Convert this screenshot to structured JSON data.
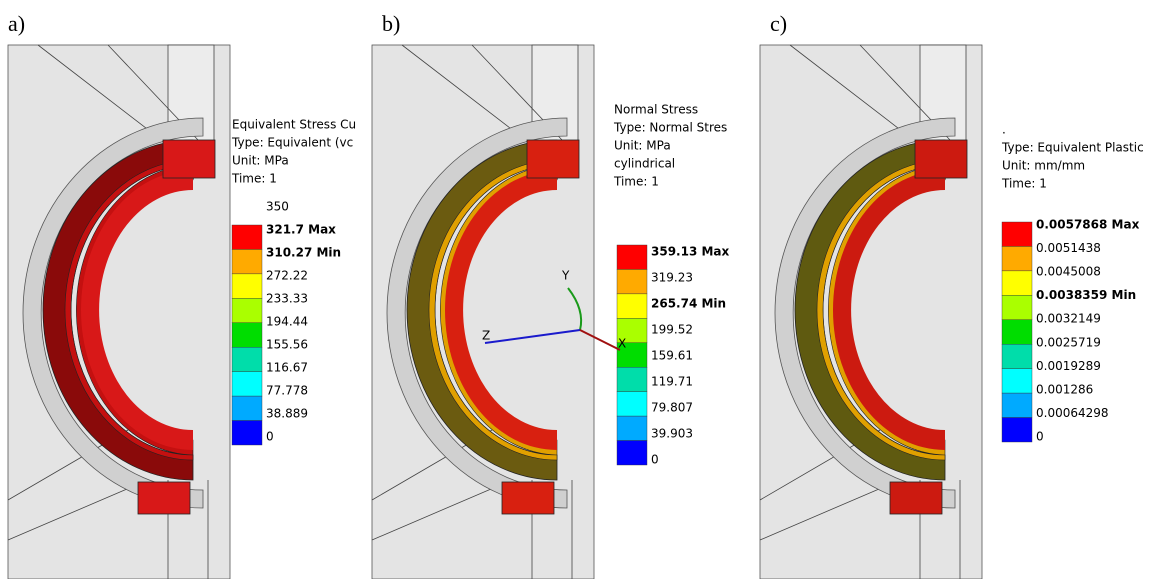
{
  "panels": [
    {
      "label": "a)",
      "legend": [
        "Equivalent Stress Cu",
        "Type: Equivalent (vc",
        "Unit: MPa",
        "Time: 1"
      ],
      "scale": [
        "350",
        "321.7 Max",
        "310.27 Min",
        "272.22",
        "233.33",
        "194.44",
        "155.56",
        "116.67",
        "77.778",
        "38.889",
        "0"
      ]
    },
    {
      "label": "b)",
      "legend": [
        "Normal Stress",
        "Type: Normal Stres",
        "Unit: MPa",
        "cylindrical",
        "Time: 1"
      ],
      "scale": [
        "359.13 Max",
        "319.23",
        "265.74 Min",
        "199.52",
        "159.61",
        "119.71",
        "79.807",
        "39.903",
        "0"
      ],
      "axes": [
        "Y",
        "Z",
        "X"
      ]
    },
    {
      "label": "c)",
      "legend": [
        ".",
        "Type: Equivalent Plastic",
        "Unit: mm/mm",
        "Time: 1"
      ],
      "scale": [
        "0.0057868 Max",
        "0.0051438",
        "0.0045008",
        "0.0038359 Min",
        "0.0032149",
        "0.0025719",
        "0.0019289",
        "0.001286",
        "0.00064298",
        "0"
      ]
    }
  ]
}
